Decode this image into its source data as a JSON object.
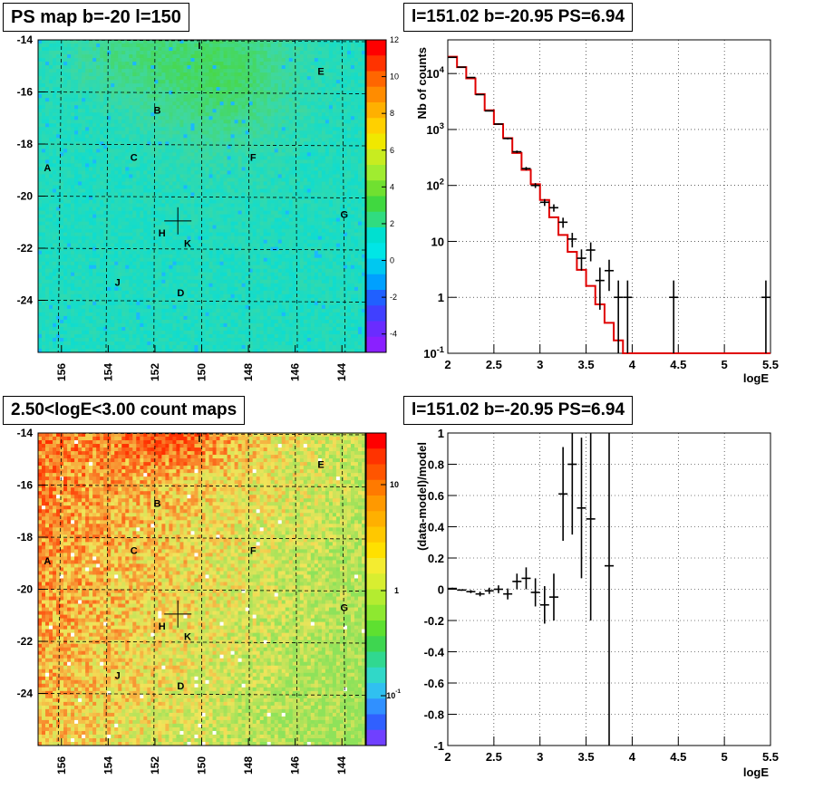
{
  "panels": {
    "ps_map": {
      "title": "PS map b=-20 l=150",
      "y_ticks": [
        -14,
        -16,
        -18,
        -20,
        -22,
        -24
      ],
      "x_ticks": [
        156,
        154,
        152,
        150,
        148,
        146,
        144
      ],
      "colorbar_ticks": [
        12,
        10,
        8,
        6,
        4,
        2,
        0,
        -2,
        -4
      ],
      "source_labels": [
        "I",
        "E",
        "B",
        "C",
        "F",
        "A",
        "G",
        "H",
        "K",
        "J",
        "D"
      ],
      "marker": {
        "l": 151.02,
        "b": -20.95
      }
    },
    "count_map": {
      "title": "2.50<logE<3.00 count maps",
      "y_ticks": [
        -14,
        -16,
        -18,
        -20,
        -22,
        -24
      ],
      "x_ticks": [
        156,
        154,
        152,
        150,
        148,
        146,
        144
      ],
      "colorbar_ticks": [
        "10",
        "1",
        "10"
      ],
      "colorbar_tick_sup": [
        "",
        "",
        "-1"
      ],
      "source_labels": [
        "I",
        "E",
        "B",
        "C",
        "F",
        "A",
        "G",
        "H",
        "K",
        "J",
        "D"
      ],
      "marker": {
        "l": 151.02,
        "b": -20.95
      }
    },
    "spectrum": {
      "title": "l=151.02 b=-20.95 PS=6.94"
    },
    "residual": {
      "title": "l=151.02 b=-20.95 PS=6.94"
    }
  },
  "chart_data": [
    {
      "type": "heatmap",
      "title": "PS map b=-20 l=150",
      "xlim": [
        157,
        143
      ],
      "ylim": [
        -26,
        -14
      ],
      "colorbar_range": [
        -5,
        12
      ],
      "colors": {
        "low": "#00e6e6",
        "mid": "#4ed84e",
        "high": "#ff0000"
      },
      "sources": [
        {
          "name": "I",
          "l": 150.1,
          "b": -14.2
        },
        {
          "name": "E",
          "l": 144.9,
          "b": -15.2
        },
        {
          "name": "B",
          "l": 151.9,
          "b": -16.7
        },
        {
          "name": "C",
          "l": 152.9,
          "b": -18.5
        },
        {
          "name": "F",
          "l": 147.8,
          "b": -18.5
        },
        {
          "name": "A",
          "l": 156.6,
          "b": -18.9
        },
        {
          "name": "G",
          "l": 143.9,
          "b": -20.7
        },
        {
          "name": "H",
          "l": 151.7,
          "b": -21.4
        },
        {
          "name": "K",
          "l": 150.6,
          "b": -21.8
        },
        {
          "name": "J",
          "l": 153.6,
          "b": -23.3
        },
        {
          "name": "D",
          "l": 150.9,
          "b": -23.7
        }
      ]
    },
    {
      "type": "heatmap",
      "title": "2.50<logE<3.00 count maps",
      "xlim": [
        157,
        143
      ],
      "ylim": [
        -26,
        -14
      ],
      "colorbar": "log",
      "colors": {
        "low": "#7fe85a",
        "mid": "#f0e060",
        "high": "#ff2a00"
      },
      "sources": [
        {
          "name": "I",
          "l": 150.1,
          "b": -14.2
        },
        {
          "name": "E",
          "l": 144.9,
          "b": -15.2
        },
        {
          "name": "B",
          "l": 151.9,
          "b": -16.7
        },
        {
          "name": "C",
          "l": 152.9,
          "b": -18.5
        },
        {
          "name": "F",
          "l": 147.8,
          "b": -18.5
        },
        {
          "name": "A",
          "l": 156.6,
          "b": -18.9
        },
        {
          "name": "G",
          "l": 143.9,
          "b": -20.7
        },
        {
          "name": "H",
          "l": 151.7,
          "b": -21.4
        },
        {
          "name": "K",
          "l": 150.6,
          "b": -21.8
        },
        {
          "name": "J",
          "l": 153.6,
          "b": -23.3
        },
        {
          "name": "D",
          "l": 150.9,
          "b": -23.7
        }
      ]
    },
    {
      "type": "line",
      "title": "l=151.02 b=-20.95 PS=6.94",
      "xlabel": "logE",
      "ylabel": "Nb of counts",
      "xlim": [
        2,
        5.5
      ],
      "ylim": [
        0.1,
        40000
      ],
      "ylog": true,
      "grid": true,
      "x_ticks": [
        "2",
        "2.5",
        "3",
        "3.5",
        "4",
        "4.5",
        "5",
        "5.5"
      ],
      "y_ticks": [
        {
          "v": 10000,
          "base": "10",
          "exp": "4"
        },
        {
          "v": 1000,
          "base": "10",
          "exp": "3"
        },
        {
          "v": 100,
          "base": "10",
          "exp": "2"
        },
        {
          "v": 10,
          "base": "10",
          "exp": ""
        },
        {
          "v": 1,
          "base": "1",
          "exp": ""
        },
        {
          "v": 0.1,
          "base": "10",
          "exp": "-1"
        }
      ],
      "model_edges": [
        2.0,
        2.1,
        2.2,
        2.3,
        2.4,
        2.5,
        2.6,
        2.7,
        2.8,
        2.9,
        3.0,
        3.1,
        3.2,
        3.3,
        3.4,
        3.5,
        3.6,
        3.7,
        3.8,
        3.9,
        4.0,
        4.1,
        4.2,
        4.3,
        4.4,
        4.5,
        4.6,
        4.7,
        4.8,
        4.9,
        5.0,
        5.1,
        5.2,
        5.3,
        5.4,
        5.5
      ],
      "series": [
        {
          "name": "model",
          "color": "#e00000",
          "values": [
            20000,
            13000,
            8200,
            4300,
            2200,
            1250,
            700,
            380,
            190,
            105,
            55,
            27,
            13,
            6.5,
            3.1,
            1.6,
            0.75,
            0.35,
            0.17,
            0.1,
            0.1,
            0.1,
            0.1,
            0.1,
            0.1,
            0.1,
            0.1,
            0.1,
            0.1,
            0.1,
            0.1,
            0.1,
            0.1,
            0.1,
            0.1
          ]
        },
        {
          "name": "data",
          "color": "#000000",
          "points": [
            {
              "x": 2.05,
              "y": 19500,
              "lo": 19300,
              "hi": 19700
            },
            {
              "x": 2.15,
              "y": 13000,
              "lo": 12850,
              "hi": 13150
            },
            {
              "x": 2.25,
              "y": 8500,
              "lo": 8400,
              "hi": 8600
            },
            {
              "x": 2.35,
              "y": 4200,
              "lo": 4130,
              "hi": 4270
            },
            {
              "x": 2.45,
              "y": 2150,
              "lo": 2100,
              "hi": 2200
            },
            {
              "x": 2.55,
              "y": 1250,
              "lo": 1215,
              "hi": 1285
            },
            {
              "x": 2.65,
              "y": 690,
              "lo": 664,
              "hi": 716
            },
            {
              "x": 2.75,
              "y": 400,
              "lo": 380,
              "hi": 420
            },
            {
              "x": 2.85,
              "y": 200,
              "lo": 186,
              "hi": 214
            },
            {
              "x": 2.95,
              "y": 100,
              "lo": 90,
              "hi": 110
            },
            {
              "x": 3.05,
              "y": 50,
              "lo": 43,
              "hi": 57
            },
            {
              "x": 3.15,
              "y": 40,
              "lo": 34,
              "hi": 46
            },
            {
              "x": 3.25,
              "y": 22,
              "lo": 17.5,
              "hi": 26.5
            },
            {
              "x": 3.35,
              "y": 11,
              "lo": 7.8,
              "hi": 14.2
            },
            {
              "x": 3.45,
              "y": 5,
              "lo": 3,
              "hi": 7.2
            },
            {
              "x": 3.55,
              "y": 7,
              "lo": 4.4,
              "hi": 9.6
            },
            {
              "x": 3.65,
              "y": 2,
              "lo": 0.6,
              "hi": 3.4
            },
            {
              "x": 3.75,
              "y": 3,
              "lo": 1.3,
              "hi": 4.7
            },
            {
              "x": 3.85,
              "y": 1,
              "lo": 0.1,
              "hi": 2
            },
            {
              "x": 3.95,
              "y": 1,
              "lo": 0.1,
              "hi": 2
            },
            {
              "x": 4.45,
              "y": 1,
              "lo": 0.1,
              "hi": 2
            },
            {
              "x": 5.45,
              "y": 1,
              "lo": 0.1,
              "hi": 2
            }
          ]
        }
      ]
    },
    {
      "type": "scatter",
      "title": "l=151.02 b=-20.95 PS=6.94",
      "xlabel": "logE",
      "ylabel": "(data-model)/model",
      "xlim": [
        2,
        5.5
      ],
      "ylim": [
        -1,
        1
      ],
      "grid": true,
      "x_ticks": [
        "2",
        "2.5",
        "3",
        "3.5",
        "4",
        "4.5",
        "5",
        "5.5"
      ],
      "y_ticks": [
        "1",
        "0.8",
        "0.6",
        "0.4",
        "0.2",
        "0",
        "-0.2",
        "-0.4",
        "-0.6",
        "-0.8",
        "-1"
      ],
      "points": [
        {
          "x": 2.05,
          "y": 0.005,
          "e": 0.005
        },
        {
          "x": 2.15,
          "y": -0.005,
          "e": 0.005
        },
        {
          "x": 2.25,
          "y": -0.015,
          "e": 0.01
        },
        {
          "x": 2.35,
          "y": -0.03,
          "e": 0.015
        },
        {
          "x": 2.45,
          "y": -0.01,
          "e": 0.02
        },
        {
          "x": 2.55,
          "y": 0.0,
          "e": 0.025
        },
        {
          "x": 2.65,
          "y": -0.03,
          "e": 0.035
        },
        {
          "x": 2.75,
          "y": 0.05,
          "e": 0.05
        },
        {
          "x": 2.85,
          "y": 0.07,
          "e": 0.07
        },
        {
          "x": 2.95,
          "y": -0.02,
          "e": 0.09
        },
        {
          "x": 3.05,
          "y": -0.1,
          "e": 0.12
        },
        {
          "x": 3.15,
          "y": -0.05,
          "e": 0.15
        },
        {
          "x": 3.25,
          "y": 0.61,
          "e": 0.3
        },
        {
          "x": 3.35,
          "y": 0.8,
          "e": 0.45
        },
        {
          "x": 3.45,
          "y": 0.52,
          "e": 0.45
        },
        {
          "x": 3.55,
          "y": 0.45,
          "e": 0.65
        },
        {
          "x": 3.75,
          "y": 0.15,
          "e": 1.2
        }
      ]
    }
  ]
}
